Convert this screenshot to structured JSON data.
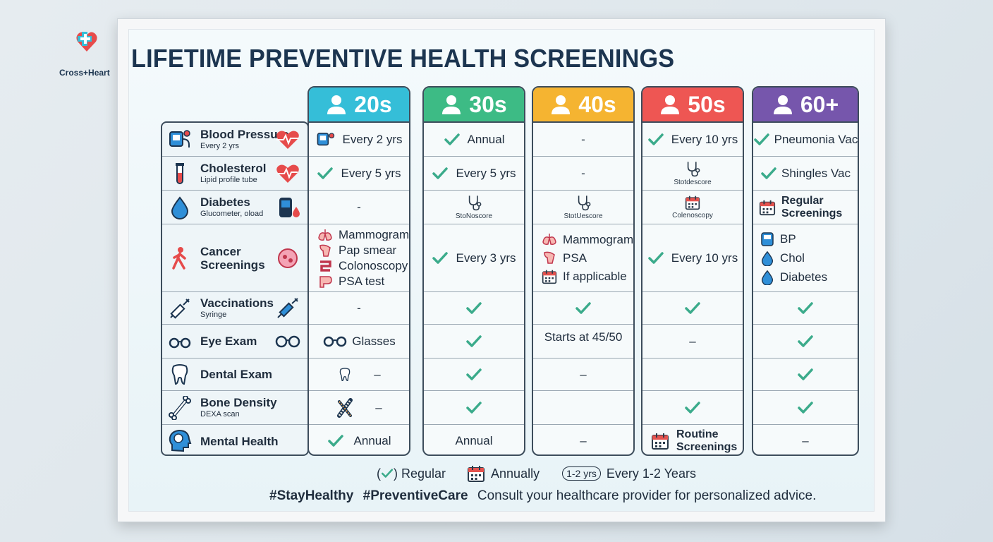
{
  "brand": {
    "name": "Cross+Heart"
  },
  "title": "LIFETIME PREVENTIVE HEALTH SCREENINGS",
  "colors": {
    "c20s": "#35bed8",
    "c30s": "#3dbb85",
    "c40s": "#f5b431",
    "c50s": "#ee5653",
    "c60s": "#7656ac",
    "check": "#3bab8b",
    "navy": "#1c3550"
  },
  "columns": [
    {
      "label": "20s"
    },
    {
      "label": "30s"
    },
    {
      "label": "40s"
    },
    {
      "label": "50s"
    },
    {
      "label": "60+"
    }
  ],
  "rows": [
    {
      "name": "Blood Pressure",
      "sub": "Every 2 yrs"
    },
    {
      "name": "Cholesterol",
      "sub": "Lipid profile tube"
    },
    {
      "name": "Diabetes",
      "sub": "Glucometer, oload"
    },
    {
      "name": "Cancer Screenings",
      "name2": "Screenings",
      "name1": "Cancer"
    },
    {
      "name": "Vaccinations",
      "sub": "Syringe"
    },
    {
      "name": "Eye Exam"
    },
    {
      "name": "Dental Exam"
    },
    {
      "name": "Bone Density",
      "sub": "DEXA scan"
    },
    {
      "name": "Mental Health"
    }
  ],
  "cells": {
    "c20": {
      "bp": "Every 2 yrs",
      "chol": "Every 5 yrs",
      "diab": "-",
      "cancer": [
        "Mammogram",
        "Pap smear",
        "Colonoscopy",
        "PSA test"
      ],
      "vacc": "-",
      "eye": "Glasses",
      "dental": "–",
      "bone": "–",
      "mental": "Annual"
    },
    "c30": {
      "bp": "Annual",
      "chol": "Every 5 yrs",
      "diab": "StoNoscore",
      "cancer": "Every 3 yrs",
      "mental": "Annual"
    },
    "c40": {
      "bp": "-",
      "chol": "-",
      "diab": "StotUescore",
      "cancer": [
        "Mammogram",
        "PSA",
        "If applicable"
      ],
      "eye": "Starts at 45/50",
      "dental": "–",
      "mental": "–"
    },
    "c50": {
      "bp": "Every 10 yrs",
      "chol": "Stotdescore",
      "diab": "Colenoscopy",
      "cancer": "Every 10 yrs",
      "eye": "–",
      "mental": [
        "Routine",
        "Screenings"
      ]
    },
    "c60": {
      "bp": "Pneumonia Vac",
      "chol": "Shingles Vac",
      "diab": [
        "Regular",
        "Screenings"
      ],
      "cancer": [
        "BP",
        "Chol",
        "Diabetes"
      ],
      "mental": "–"
    }
  },
  "legend": {
    "regular_open": "(",
    "regular_close": ") Regular",
    "annually": "Annually",
    "pill": "1-2 yrs",
    "every": "Every 1-2 Years"
  },
  "footer": {
    "tag1": "#StayHealthy",
    "tag2": "#PreventiveCare",
    "note": "Consult your healthcare provider for personalized advice."
  }
}
